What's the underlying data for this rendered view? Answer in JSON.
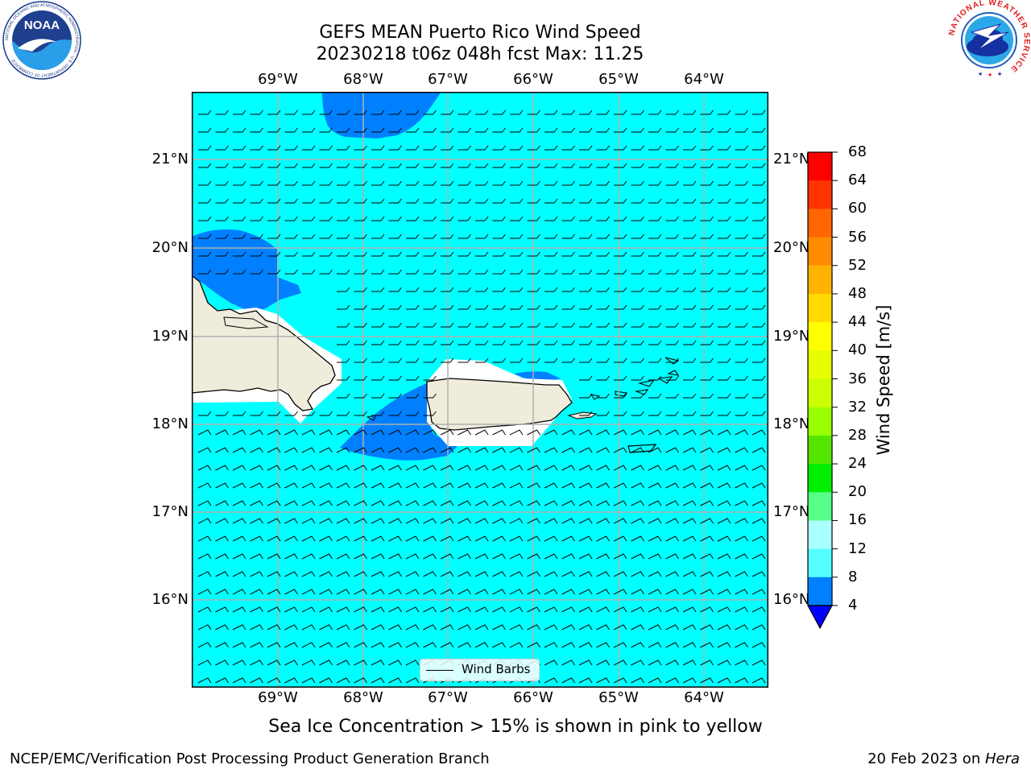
{
  "title": {
    "line1": "GEFS MEAN Puerto Rico Wind Speed",
    "line2": "20230218 t06z 048h fcst   Max: 11.25"
  },
  "map": {
    "longitude_labels": [
      "69°W",
      "68°W",
      "67°W",
      "66°W",
      "65°W",
      "64°W"
    ],
    "latitude_labels": [
      "21°N",
      "20°N",
      "19°N",
      "18°N",
      "17°N",
      "16°N"
    ],
    "ocean_color": "#00ffff",
    "wind_4_8_color": "#0080ff",
    "land_color": "#efecdc",
    "legend_label": "Wind Barbs"
  },
  "colorbar": {
    "label": "Wind Speed [m/s]",
    "ticks": [
      "68",
      "64",
      "60",
      "56",
      "52",
      "48",
      "44",
      "40",
      "36",
      "32",
      "28",
      "24",
      "20",
      "16",
      "12",
      "8",
      "4"
    ],
    "colors": [
      "#ff0000",
      "#ff3300",
      "#ff6600",
      "#ff8c00",
      "#ffb300",
      "#ffd900",
      "#ffff00",
      "#e6ff00",
      "#ccff00",
      "#99ff00",
      "#55e600",
      "#00ee00",
      "#55ff88",
      "#aaffff",
      "#55ffff",
      "#00ffff",
      "#0080ff"
    ],
    "extend_color": "#0000ff"
  },
  "logos": {
    "noaa_text": "NOAA",
    "noaa_ring": "NATIONAL OCEANIC AND ATMOSPHERIC ADMINISTRATION · U.S. DEPARTMENT OF COMMERCE",
    "nws_ring": "NATIONAL WEATHER SERVICE"
  },
  "note": "Sea Ice Concentration > 15% is shown in pink to yellow",
  "footer": {
    "left": "NCEP/EMC/Verification Post Processing Product Generation Branch",
    "right_date": "20 Feb 2023 on ",
    "right_machine": "Hera"
  }
}
